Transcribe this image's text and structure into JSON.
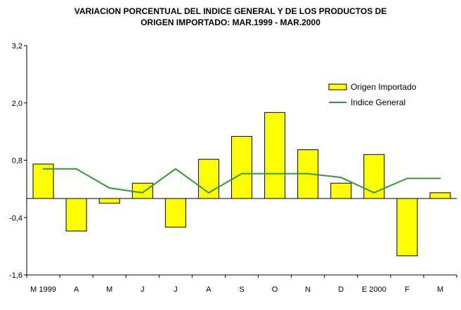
{
  "chart_data": {
    "type": "bar",
    "title_line1": "VARIACION PORCENTUAL DEL INDICE GENERAL Y DE LOS PRODUCTOS DE",
    "title_line2": "ORIGEN IMPORTADO: MAR.1999 - MAR.2000",
    "categories": [
      "M 1999",
      "A",
      "M",
      "J",
      "J",
      "A",
      "S",
      "O",
      "N",
      "D",
      "E 2000",
      "F",
      "M"
    ],
    "y_ticks": [
      "3,2",
      "2,0",
      "0,8",
      "-0,4",
      "-1,6"
    ],
    "ylim": [
      -1.6,
      3.2
    ],
    "grid": false,
    "legend_position": "top-right",
    "series": [
      {
        "name": "Origen Importado",
        "kind": "bar",
        "color": "#ffff00",
        "values": [
          0.72,
          -0.68,
          -0.1,
          0.32,
          -0.6,
          0.82,
          1.3,
          1.8,
          1.02,
          0.32,
          0.92,
          -1.2,
          0.12
        ]
      },
      {
        "name": "Indice General",
        "kind": "line",
        "color": "#339933",
        "values": [
          0.62,
          0.62,
          0.22,
          0.12,
          0.62,
          0.12,
          0.52,
          0.52,
          0.52,
          0.44,
          0.12,
          0.42,
          0.42
        ]
      }
    ]
  }
}
